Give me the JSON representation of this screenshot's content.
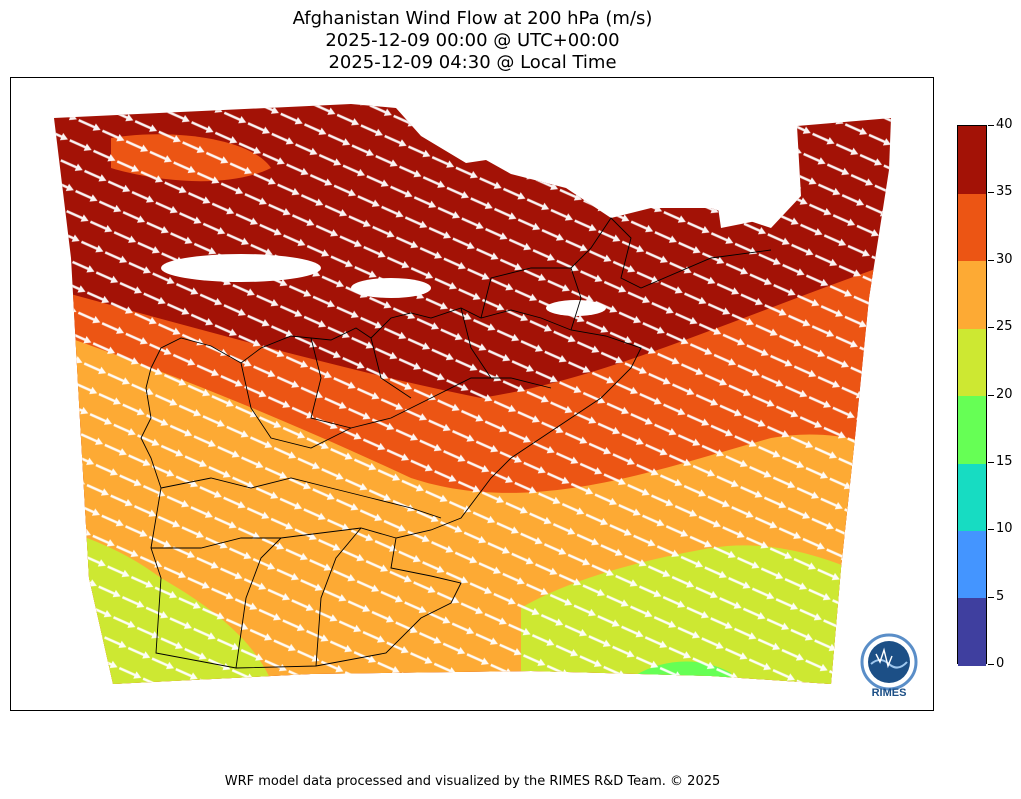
{
  "title": {
    "line1": "Afghanistan Wind Flow at 200 hPa (m/s)",
    "line2": "2025-12-09 00:00 @ UTC+00:00",
    "line3": "2025-12-09 04:30 @ Local Time"
  },
  "colorbar": {
    "levels": [
      0,
      5,
      10,
      15,
      20,
      25,
      30,
      35,
      40
    ],
    "labels": [
      "0",
      "5",
      "10",
      "15",
      "20",
      "25",
      "30",
      "35",
      "40"
    ],
    "colors": [
      "#3f3f9f",
      "#4495ff",
      "#17dcc2",
      "#66ff55",
      "#cde832",
      "#fdaa34",
      "#ec5514",
      "#a31206"
    ]
  },
  "map": {
    "variable": "wind speed",
    "units": "m/s",
    "vectors": "white wind arrows, flow from northwest to southeast"
  },
  "logo": {
    "text": "RIMES",
    "icon": "rimes-logo-icon"
  },
  "footer": "WRF model data processed and visualized by the RIMES R&D Team. © 2025"
}
